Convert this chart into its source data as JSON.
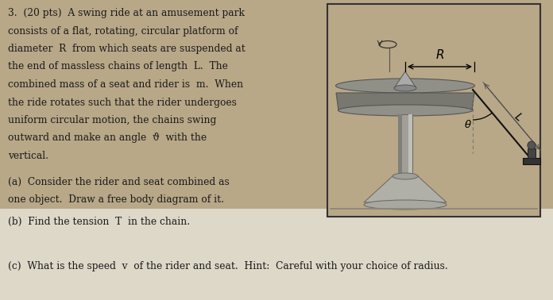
{
  "bg_color": "#b8a888",
  "box_bg_color": "#b8a888",
  "bottom_bg_color": "#ddd8c8",
  "text_color": "#1a1a1a",
  "title_text": "3.  (20 pts)  A swing ride at an amusement park\nconsists of a flat, rotating, circular platform of\ndiameter  R  from which seats are suspended at\nthe end of massless chains of length  L.  The\ncombined mass of a seat and rider is  m.  When\nthe ride rotates such that the rider undergoes\nuniform circular motion, the chains swing\noutward and make an angle  ϑ  with the\nvertical.",
  "part_a": "(a)  Consider the rider and seat combined as\none object.  Draw a free body diagram of it.",
  "part_b": "(b)  Find the tension  T  in the chain.",
  "part_c": "(c)  What is the speed  v  of the rider and seat.  Hint:  Careful with your choice of radius.",
  "font_size_main": 8.8,
  "font_size_parts": 8.8
}
